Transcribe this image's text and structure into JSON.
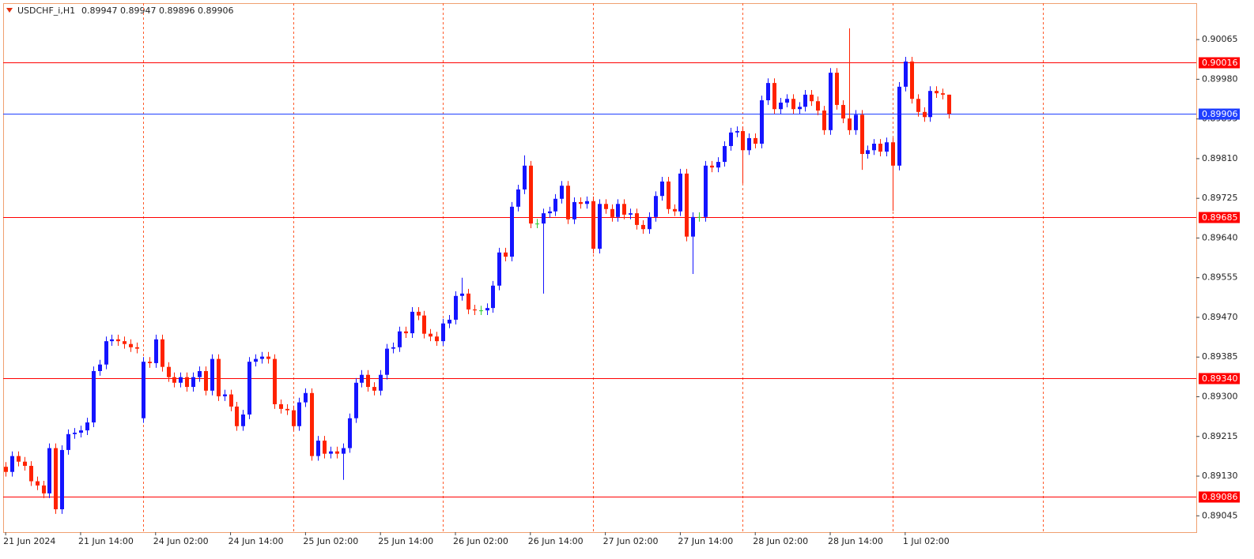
{
  "chart_data": {
    "type": "candlestick",
    "header": {
      "symbol": "USDCHF_i,H1",
      "open": 0.89947,
      "high": 0.89947,
      "low": 0.89896,
      "close": 0.89906
    },
    "up_color": "#1414ff",
    "down_color": "#ff2200",
    "doji_color": "#2ecc2e",
    "xlim": [
      -0.4,
      190.6
    ],
    "xticks": [
      {
        "value": 0,
        "label": "21 Jun 2024"
      },
      {
        "value": 12,
        "label": "21 Jun 14:00"
      },
      {
        "value": 24,
        "label": "24 Jun 02:00"
      },
      {
        "value": 36,
        "label": "24 Jun 14:00"
      },
      {
        "value": 48,
        "label": "25 Jun 02:00"
      },
      {
        "value": 60,
        "label": "25 Jun 14:00"
      },
      {
        "value": 72,
        "label": "26 Jun 02:00"
      },
      {
        "value": 84,
        "label": "26 Jun 14:00"
      },
      {
        "value": 96,
        "label": "27 Jun 02:00"
      },
      {
        "value": 108,
        "label": "27 Jun 14:00"
      },
      {
        "value": 120,
        "label": "28 Jun 02:00"
      },
      {
        "value": 132,
        "label": "28 Jun 14:00"
      },
      {
        "value": 144,
        "label": "1 Jul 02:00"
      }
    ],
    "day_separators": [
      22,
      46,
      70,
      94,
      118,
      142,
      166
    ],
    "ylim": [
      0.8901,
      0.90143
    ],
    "yticks": [
      0.90065,
      {
        "value": 0.8998,
        "label": "0.89980"
      },
      0.89895,
      {
        "value": 0.8981,
        "label": "0.89810"
      },
      0.89725,
      {
        "value": 0.8964,
        "label": "0.89640"
      },
      0.89555,
      {
        "value": 0.8947,
        "label": "0.89470"
      },
      0.89385,
      {
        "value": 0.893,
        "label": "0.89300"
      },
      0.89215,
      {
        "value": 0.8913,
        "label": "0.89130"
      },
      0.89045
    ],
    "levels": [
      {
        "value": 0.90016,
        "color": "#ff0000"
      },
      {
        "value": 0.89906,
        "color": "#1f3fff"
      },
      {
        "value": 0.89685,
        "color": "#ff0000"
      },
      {
        "value": 0.8934,
        "label": "0.89340",
        "color": "#ff0000"
      },
      {
        "value": 0.89086,
        "color": "#ff0000"
      }
    ],
    "open": [
      0.8915,
      0.89139,
      0.89173,
      0.89161,
      0.89152,
      0.89119,
      0.8911,
      0.89093,
      0.8919,
      0.89059,
      0.89186,
      0.8922,
      0.89223,
      0.89228,
      0.89245,
      0.89355,
      0.89369,
      0.89419,
      0.89423,
      0.89419,
      0.89413,
      0.89406,
      0.89254,
      0.89375,
      0.89372,
      0.89423,
      0.89364,
      0.89342,
      0.8933,
      0.89342,
      0.89321,
      0.89342,
      0.89355,
      0.89313,
      0.89381,
      0.89301,
      0.89305,
      0.89279,
      0.89237,
      0.89262,
      0.89375,
      0.89381,
      0.89386,
      0.89381,
      0.89284,
      0.89274,
      0.89271,
      0.89237,
      0.89288,
      0.89308,
      0.89173,
      0.89206,
      0.89178,
      0.89183,
      0.89178,
      0.8919,
      0.89254,
      0.8933,
      0.89347,
      0.89321,
      0.89313,
      0.89347,
      0.89403,
      0.89406,
      0.8944,
      0.89436,
      0.89482,
      0.89474,
      0.89435,
      0.89429,
      0.89419,
      0.89457,
      0.89465,
      0.89516,
      0.89521,
      0.89487,
      0.89485,
      0.89485,
      0.8949,
      0.89538,
      0.89609,
      0.896,
      0.89707,
      0.89744,
      0.89795,
      0.89671,
      0.89671,
      0.89693,
      0.89697,
      0.89724,
      0.89752,
      0.8968,
      0.89717,
      0.89713,
      0.89719,
      0.89617,
      0.89713,
      0.89702,
      0.89685,
      0.89713,
      0.8969,
      0.89693,
      0.89668,
      0.89659,
      0.89685,
      0.8973,
      0.89761,
      0.89702,
      0.89697,
      0.89778,
      0.89643,
      0.89685,
      0.89685,
      0.89795,
      0.89791,
      0.89803,
      0.89837,
      0.89866,
      0.89869,
      0.89828,
      0.89854,
      0.89842,
      0.89935,
      0.89972,
      0.89916,
      0.8993,
      0.89938,
      0.89916,
      0.89921,
      0.89947,
      0.89933,
      0.89913,
      0.89871,
      0.89994,
      0.89925,
      0.89896,
      0.89871,
      0.89904,
      0.8982,
      0.89828,
      0.89842,
      0.89825,
      0.89845,
      0.89795,
      0.89964,
      0.90018,
      0.89938,
      0.8991,
      0.89899,
      0.89955,
      0.8995,
      0.89947
    ],
    "high": [
      0.8916,
      0.89183,
      0.89183,
      0.89171,
      0.89162,
      0.89129,
      0.8912,
      0.892,
      0.892,
      0.89196,
      0.8923,
      0.89233,
      0.89238,
      0.89255,
      0.89365,
      0.89379,
      0.89429,
      0.89433,
      0.89433,
      0.89429,
      0.89423,
      0.89416,
      0.89385,
      0.89385,
      0.89433,
      0.89433,
      0.89374,
      0.89352,
      0.89352,
      0.89352,
      0.89352,
      0.89365,
      0.89365,
      0.89391,
      0.89391,
      0.89315,
      0.89315,
      0.89289,
      0.89272,
      0.89385,
      0.89391,
      0.89396,
      0.89396,
      0.89391,
      0.89294,
      0.89284,
      0.89281,
      0.89298,
      0.89318,
      0.89318,
      0.89216,
      0.89216,
      0.89193,
      0.89193,
      0.892,
      0.89264,
      0.8934,
      0.89357,
      0.89357,
      0.89331,
      0.89357,
      0.89413,
      0.89416,
      0.8945,
      0.8945,
      0.89492,
      0.89492,
      0.89484,
      0.89445,
      0.89439,
      0.89467,
      0.89475,
      0.89526,
      0.89555,
      0.89531,
      0.89497,
      0.89495,
      0.895,
      0.89548,
      0.89619,
      0.89619,
      0.89717,
      0.89754,
      0.89817,
      0.89805,
      0.89681,
      0.89703,
      0.89707,
      0.89734,
      0.89762,
      0.89762,
      0.89727,
      0.89727,
      0.89729,
      0.89729,
      0.89723,
      0.89723,
      0.89712,
      0.89723,
      0.89723,
      0.89703,
      0.89703,
      0.89678,
      0.89695,
      0.8974,
      0.89771,
      0.89771,
      0.89712,
      0.89788,
      0.89788,
      0.89695,
      0.89695,
      0.89805,
      0.89805,
      0.89813,
      0.89847,
      0.89876,
      0.89879,
      0.89879,
      0.89864,
      0.89864,
      0.89945,
      0.89982,
      0.89982,
      0.8994,
      0.89948,
      0.89948,
      0.89931,
      0.89957,
      0.89957,
      0.89943,
      0.89923,
      0.90004,
      0.90004,
      0.89935,
      0.90089,
      0.89914,
      0.89914,
      0.89838,
      0.89852,
      0.89852,
      0.89855,
      0.89855,
      0.89974,
      0.90028,
      0.90028,
      0.89948,
      0.8992,
      0.89965,
      0.89965,
      0.8996,
      0.89947
    ],
    "low": [
      0.89129,
      0.89129,
      0.89151,
      0.89142,
      0.89109,
      0.891,
      0.89083,
      0.89083,
      0.89049,
      0.89049,
      0.89176,
      0.8921,
      0.89213,
      0.89218,
      0.89235,
      0.89345,
      0.89359,
      0.89409,
      0.89409,
      0.89403,
      0.89396,
      0.89393,
      0.89244,
      0.89362,
      0.89362,
      0.89354,
      0.89332,
      0.8932,
      0.8932,
      0.89311,
      0.89311,
      0.89332,
      0.89303,
      0.89303,
      0.89291,
      0.89291,
      0.89269,
      0.89227,
      0.89227,
      0.89252,
      0.89365,
      0.89371,
      0.89371,
      0.89274,
      0.89264,
      0.89261,
      0.89227,
      0.89227,
      0.89278,
      0.89163,
      0.89163,
      0.89168,
      0.89168,
      0.89168,
      0.89122,
      0.8918,
      0.89244,
      0.8932,
      0.89311,
      0.89303,
      0.89303,
      0.89337,
      0.89393,
      0.89396,
      0.89426,
      0.89426,
      0.89464,
      0.89425,
      0.89419,
      0.89409,
      0.89409,
      0.89447,
      0.89455,
      0.89506,
      0.89477,
      0.89475,
      0.89475,
      0.89475,
      0.8948,
      0.89528,
      0.8959,
      0.8959,
      0.89697,
      0.89734,
      0.89661,
      0.89661,
      0.89521,
      0.89683,
      0.89687,
      0.89714,
      0.8967,
      0.8967,
      0.89703,
      0.89703,
      0.89607,
      0.89607,
      0.89692,
      0.89675,
      0.89675,
      0.8968,
      0.8968,
      0.89658,
      0.89649,
      0.89649,
      0.89675,
      0.8972,
      0.89692,
      0.89687,
      0.89687,
      0.89633,
      0.89563,
      0.89675,
      0.89675,
      0.89781,
      0.89781,
      0.89793,
      0.89827,
      0.89856,
      0.89757,
      0.89818,
      0.89832,
      0.89832,
      0.89925,
      0.89906,
      0.89906,
      0.8992,
      0.89906,
      0.89906,
      0.89911,
      0.89923,
      0.89903,
      0.89861,
      0.89861,
      0.89915,
      0.89886,
      0.89861,
      0.89861,
      0.89786,
      0.8981,
      0.89818,
      0.89815,
      0.89815,
      0.89698,
      0.89785,
      0.89954,
      0.89928,
      0.899,
      0.89889,
      0.89889,
      0.8994,
      0.89937,
      0.89896
    ],
    "close": [
      0.89139,
      0.89173,
      0.89161,
      0.89152,
      0.89119,
      0.8911,
      0.89093,
      0.8919,
      0.89059,
      0.89186,
      0.8922,
      0.89223,
      0.89228,
      0.89245,
      0.89355,
      0.89369,
      0.89419,
      0.89423,
      0.89419,
      0.89413,
      0.89406,
      0.89403,
      0.89375,
      0.89372,
      0.89423,
      0.89364,
      0.89342,
      0.8933,
      0.89342,
      0.89321,
      0.89342,
      0.89355,
      0.89313,
      0.89381,
      0.89301,
      0.89305,
      0.89279,
      0.89237,
      0.89262,
      0.89375,
      0.89381,
      0.89386,
      0.89381,
      0.89284,
      0.89274,
      0.89271,
      0.89237,
      0.89288,
      0.89308,
      0.89173,
      0.89206,
      0.89178,
      0.89183,
      0.89178,
      0.8919,
      0.89254,
      0.8933,
      0.89347,
      0.89321,
      0.89313,
      0.89347,
      0.89403,
      0.89406,
      0.8944,
      0.89436,
      0.89482,
      0.89474,
      0.89435,
      0.89429,
      0.89419,
      0.89457,
      0.89465,
      0.89516,
      0.89521,
      0.89487,
      0.89485,
      0.89485,
      0.8949,
      0.89538,
      0.89609,
      0.896,
      0.89707,
      0.89744,
      0.89795,
      0.89671,
      0.89671,
      0.89693,
      0.89697,
      0.89724,
      0.89752,
      0.8968,
      0.89717,
      0.89713,
      0.89719,
      0.89617,
      0.89713,
      0.89702,
      0.89685,
      0.89713,
      0.8969,
      0.89693,
      0.89668,
      0.89659,
      0.89685,
      0.8973,
      0.89761,
      0.89702,
      0.89697,
      0.89778,
      0.89643,
      0.89685,
      0.89685,
      0.89795,
      0.89791,
      0.89803,
      0.89837,
      0.89866,
      0.89869,
      0.89828,
      0.89854,
      0.89842,
      0.89935,
      0.89972,
      0.89916,
      0.8993,
      0.89938,
      0.89916,
      0.89921,
      0.89947,
      0.89933,
      0.89913,
      0.89871,
      0.89994,
      0.89925,
      0.89896,
      0.89871,
      0.89904,
      0.8982,
      0.89828,
      0.89842,
      0.89825,
      0.89845,
      0.89795,
      0.89964,
      0.90018,
      0.89938,
      0.8991,
      0.89899,
      0.89955,
      0.8995,
      0.89947,
      0.89906
    ]
  }
}
